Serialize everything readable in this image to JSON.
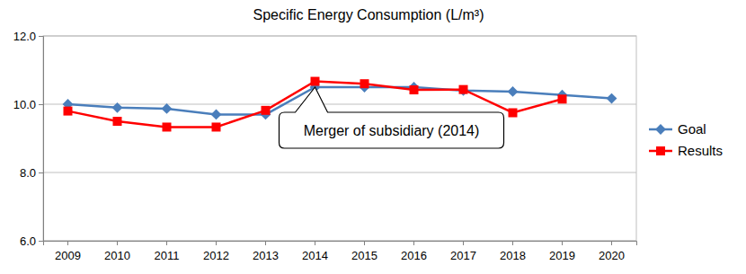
{
  "chart_data": {
    "type": "line",
    "title": "Specific Energy Consumption (L/m³)",
    "categories": [
      "2009",
      "2010",
      "2011",
      "2012",
      "2013",
      "2014",
      "2015",
      "2016",
      "2017",
      "2018",
      "2019",
      "2020"
    ],
    "series": [
      {
        "name": "Goal",
        "color": "#4a7ebb",
        "marker": "diamond",
        "line_style": "solid",
        "values": [
          10.0,
          9.9,
          9.87,
          9.7,
          9.7,
          10.5,
          10.5,
          10.5,
          10.4,
          10.37,
          10.27,
          10.17
        ]
      },
      {
        "name": "Results",
        "color": "#ff0000",
        "marker": "square",
        "line_style": "solid",
        "values": [
          9.8,
          9.5,
          9.33,
          9.33,
          9.82,
          10.67,
          10.6,
          10.42,
          10.43,
          9.75,
          10.15,
          null
        ]
      }
    ],
    "ylim": [
      6,
      12
    ],
    "yticks": [
      {
        "value": 6,
        "label": "6.0"
      },
      {
        "value": 8,
        "label": "8.0"
      },
      {
        "value": 10,
        "label": "10.0"
      },
      {
        "value": 12,
        "label": "12.0"
      }
    ],
    "grid": true,
    "legend": "right",
    "annotations": [
      {
        "text": "Merger of subsidiary (2014)",
        "x": "2014",
        "y": 10.5
      }
    ]
  }
}
